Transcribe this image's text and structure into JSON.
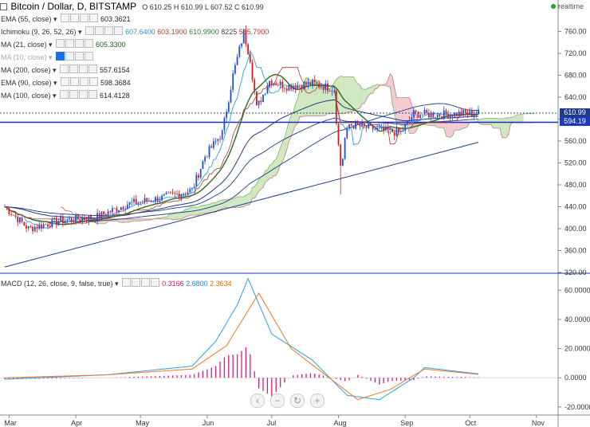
{
  "header": {
    "symbol": "Bitcoin / Dollar, D, BITSTAMP",
    "ohlc": "O 610.25  H 610.99  L 607.52  C 610.99",
    "status": "realtime"
  },
  "indicators": [
    {
      "name": "EMA (55, close)",
      "values": [
        "603.3621"
      ],
      "colors": [
        "#222222"
      ]
    },
    {
      "name": "Ichimoku (9, 26, 52, 26)",
      "values": [
        "607.6400",
        "603.1900",
        "610.9900",
        "8225",
        "565.7900"
      ],
      "colors": [
        "#2a8fd8",
        "#c0392b",
        "#2e7d32",
        "#444444",
        "#c0392b"
      ]
    },
    {
      "name": "MA (21, close)",
      "values": [
        "605.3300"
      ],
      "colors": [
        "#1a5e1a"
      ]
    },
    {
      "name": "MA (10, close)",
      "values": [],
      "colors": []
    },
    {
      "name": "MA (200, close)",
      "values": [
        "557.6154"
      ],
      "colors": [
        "#222222"
      ]
    },
    {
      "name": "EMA (90, close)",
      "values": [
        "598.3684"
      ],
      "colors": [
        "#222222"
      ]
    },
    {
      "name": "MA (100, close)",
      "values": [
        "614.4128"
      ],
      "colors": [
        "#222222"
      ]
    }
  ],
  "macd_label": {
    "name": "MACD (12, 26, close, 9, false, true)",
    "values": [
      "0.3166",
      "2.6800",
      "2.3634"
    ],
    "colors": [
      "#d81b60",
      "#1e88e5",
      "#ef6c00"
    ]
  },
  "price_boxes": [
    {
      "label": "610.99",
      "value": 610.99,
      "color": "#1e3a8a"
    },
    {
      "label": "594.19",
      "value": 594.19,
      "color": "#1e3ab8"
    }
  ],
  "colors": {
    "up": "#1f4fd8",
    "down": "#d81b1b",
    "ma": "#1a3d8f",
    "tenkan": "#2a9fe8",
    "kijun": "#2e6b1e",
    "cloud_green": "#cfe8c0",
    "cloud_red": "#f4c9cf",
    "macd": "#2a9fe8",
    "signal": "#f07820",
    "hist": "#d81b7a",
    "level": "#1a2fc8"
  },
  "chart_data": [
    {
      "type": "line",
      "title": "Bitcoin / Dollar, D, BITSTAMP",
      "x_labels": [
        "Mar",
        "Apr",
        "May",
        "Jun",
        "Jul",
        "Aug",
        "Sep",
        "Oct",
        "Nov"
      ],
      "ylim": [
        320,
        800
      ],
      "y_ticks": [
        320,
        360,
        400,
        440,
        480,
        520,
        560,
        600,
        640,
        680,
        720,
        760
      ],
      "y_tick_labels": [
        "320.00",
        "360.00",
        "400.00",
        "440.00",
        "480.00",
        "520.00",
        "560.00",
        "600.00",
        "640.00",
        "680.00",
        "720.00",
        "760.00"
      ],
      "horizontal_level": 594.19,
      "last_close": 610.99,
      "price_path": [
        {
          "x": "Feb 27",
          "y": 440
        },
        {
          "x": "Mar 10",
          "y": 400
        },
        {
          "x": "Mar 25",
          "y": 415
        },
        {
          "x": "Apr 10",
          "y": 420
        },
        {
          "x": "Apr 25",
          "y": 445
        },
        {
          "x": "May 10",
          "y": 455
        },
        {
          "x": "May 25",
          "y": 470
        },
        {
          "x": "May 31",
          "y": 532
        },
        {
          "x": "Jun 8",
          "y": 575
        },
        {
          "x": "Jun 13",
          "y": 680
        },
        {
          "x": "Jun 18",
          "y": 758
        },
        {
          "x": "Jun 21",
          "y": 710
        },
        {
          "x": "Jun 24",
          "y": 620
        },
        {
          "x": "Jun 30",
          "y": 670
        },
        {
          "x": "Jul 8",
          "y": 660
        },
        {
          "x": "Jul 20",
          "y": 665
        },
        {
          "x": "Jul 30",
          "y": 655
        },
        {
          "x": "Aug 2",
          "y": 540
        },
        {
          "x": "Aug 6",
          "y": 590
        },
        {
          "x": "Aug 20",
          "y": 580
        },
        {
          "x": "Aug 30",
          "y": 575
        },
        {
          "x": "Sep 5",
          "y": 610
        },
        {
          "x": "Sep 15",
          "y": 608
        },
        {
          "x": "Oct 5",
          "y": 611
        }
      ],
      "ma_200": [
        {
          "x": "Feb 27",
          "y": 330
        },
        {
          "x": "Oct 5",
          "y": 557.6
        }
      ],
      "macd": {
        "ylim": [
          -25,
          70
        ],
        "y_ticks": [
          -20,
          0,
          20,
          40,
          60
        ],
        "y_tick_labels": [
          "-20.0000",
          "0.0000",
          "20.0000",
          "40.0000",
          "60.0000"
        ],
        "macd_line": [
          {
            "x": "Feb 27",
            "y": -1
          },
          {
            "x": "Apr 15",
            "y": 2
          },
          {
            "x": "May 25",
            "y": 8
          },
          {
            "x": "Jun 5",
            "y": 25
          },
          {
            "x": "Jun 15",
            "y": 50
          },
          {
            "x": "Jun 20",
            "y": 68
          },
          {
            "x": "Jul 1",
            "y": 30
          },
          {
            "x": "Jul 20",
            "y": 12
          },
          {
            "x": "Aug 5",
            "y": -12
          },
          {
            "x": "Aug 20",
            "y": -15
          },
          {
            "x": "Sep 5",
            "y": 0
          },
          {
            "x": "Sep 10",
            "y": 7
          },
          {
            "x": "Oct 5",
            "y": 2.68
          }
        ],
        "signal_line": [
          {
            "x": "Feb 27",
            "y": 0
          },
          {
            "x": "Apr 15",
            "y": 2
          },
          {
            "x": "May 25",
            "y": 6
          },
          {
            "x": "Jun 10",
            "y": 22
          },
          {
            "x": "Jun 25",
            "y": 58
          },
          {
            "x": "Jul 10",
            "y": 20
          },
          {
            "x": "Aug 10",
            "y": -15
          },
          {
            "x": "Aug 25",
            "y": -8
          },
          {
            "x": "Sep 10",
            "y": 6
          },
          {
            "x": "Oct 5",
            "y": 2.36
          }
        ]
      }
    }
  ]
}
